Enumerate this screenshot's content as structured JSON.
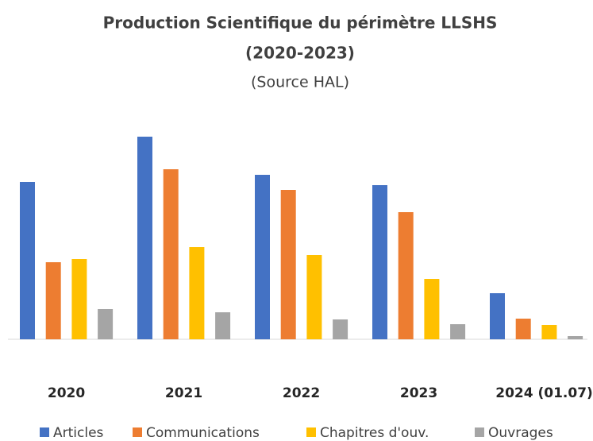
{
  "chart_data": {
    "type": "bar",
    "title": [
      "Production Scientifique du périmètre LLSHS",
      "(2020-2023)"
    ],
    "subtitle": "(Source HAL)",
    "categories": [
      "2020",
      "2021",
      "2022",
      "2023",
      "2024 (01.07)"
    ],
    "series": [
      {
        "name": "Articles",
        "color": "#4472c4",
        "values": [
          198,
          255,
          207,
          194,
          58
        ]
      },
      {
        "name": "Communications",
        "color": "#ed7d31",
        "values": [
          97,
          214,
          188,
          160,
          26
        ]
      },
      {
        "name": "Chapitres d'ouv.",
        "color": "#ffc000",
        "values": [
          101,
          116,
          106,
          76,
          18
        ]
      },
      {
        "name": "Ouvrages",
        "color": "#a5a5a5",
        "values": [
          38,
          34,
          25,
          19,
          4
        ]
      }
    ],
    "ylim": [
      0,
      260
    ]
  }
}
